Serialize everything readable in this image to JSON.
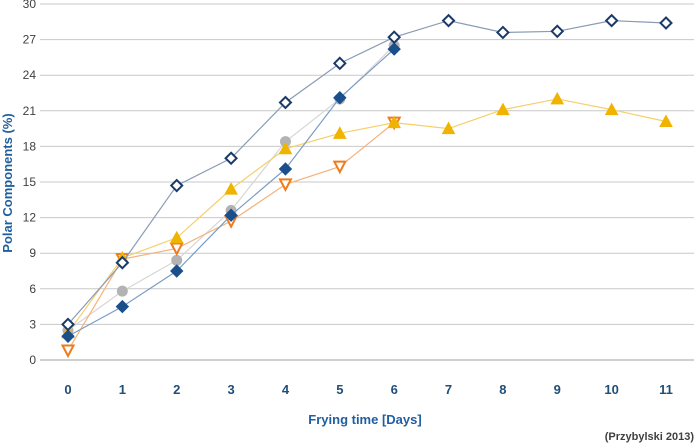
{
  "chart_data": {
    "type": "line",
    "title": "",
    "xlabel": "Frying time [Days]",
    "ylabel": "Polar Components (%)",
    "credit": "(Przybylski 2013)",
    "x": [
      0,
      1,
      2,
      3,
      4,
      5,
      6,
      7,
      8,
      9,
      10,
      11
    ],
    "x_ticks": [
      "0",
      "1",
      "2",
      "3",
      "4",
      "5",
      "6",
      "7",
      "8",
      "9",
      "10",
      "11"
    ],
    "ylim": [
      0,
      30
    ],
    "y_ticks": [
      "0",
      "3",
      "6",
      "9",
      "12",
      "15",
      "18",
      "21",
      "24",
      "27",
      "30"
    ],
    "grid": true,
    "legend": "none",
    "series": [
      {
        "marker": "diamond-open",
        "color": "#1a3a6b",
        "line_color": "#8a9bb5",
        "values": [
          3.0,
          8.2,
          14.7,
          17.0,
          21.7,
          25.0,
          27.2,
          28.6,
          27.6,
          27.7,
          28.6,
          28.4
        ]
      },
      {
        "marker": "triangle-up",
        "color": "#f0b400",
        "line_color": "#f5cf6a",
        "values": [
          2.3,
          8.6,
          10.3,
          14.4,
          17.8,
          19.1,
          20.0,
          19.5,
          21.1,
          22.0,
          21.1,
          20.1
        ]
      },
      {
        "marker": "triangle-down-open",
        "color": "#f07b1a",
        "line_color": "#f5b27a",
        "values": [
          0.8,
          8.5,
          9.4,
          11.7,
          14.8,
          16.3,
          20.0,
          null,
          null,
          null,
          null,
          null
        ]
      },
      {
        "marker": "circle",
        "color": "#b3b3b3",
        "line_color": "#d6d6d6",
        "values": [
          2.5,
          5.8,
          8.4,
          12.6,
          18.4,
          22.0,
          26.5,
          null,
          null,
          null,
          null,
          null
        ]
      },
      {
        "marker": "diamond",
        "color": "#1a4f8c",
        "line_color": "#7a9cc6",
        "values": [
          2.0,
          4.5,
          7.5,
          12.2,
          16.1,
          22.1,
          26.2,
          null,
          null,
          null,
          null,
          null
        ]
      }
    ]
  }
}
